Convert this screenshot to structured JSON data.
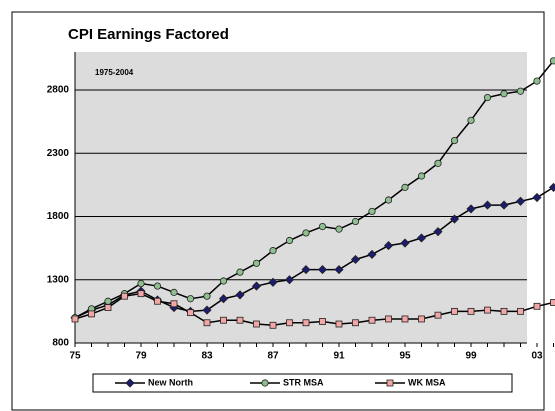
{
  "chart_data": {
    "type": "line",
    "title": "CPI Earnings Factored",
    "subtitle": "1975-2004",
    "categories": [
      "75",
      null,
      null,
      null,
      "79",
      null,
      null,
      null,
      "83",
      null,
      null,
      null,
      "87",
      null,
      null,
      null,
      "91",
      null,
      null,
      null,
      "95",
      null,
      null,
      null,
      "99",
      null,
      null,
      null,
      "03",
      null
    ],
    "series": [
      {
        "name": "New North",
        "color": "#1c1c6e",
        "marker": "diamond",
        "values": [
          1000,
          1060,
          1100,
          1180,
          1210,
          1140,
          1080,
          1050,
          1060,
          1150,
          1180,
          1250,
          1280,
          1300,
          1380,
          1380,
          1380,
          1460,
          1500,
          1570,
          1590,
          1630,
          1680,
          1780,
          1860,
          1890,
          1890,
          1920,
          1950,
          2030
        ]
      },
      {
        "name": "STR MSA",
        "color": "#8fbf8f",
        "marker": "circle",
        "values": [
          1000,
          1070,
          1130,
          1190,
          1270,
          1250,
          1200,
          1150,
          1170,
          1290,
          1360,
          1430,
          1530,
          1610,
          1670,
          1720,
          1700,
          1760,
          1840,
          1930,
          2030,
          2120,
          2220,
          2400,
          2560,
          2740,
          2770,
          2790,
          2870,
          3030
        ]
      },
      {
        "name": "WK MSA",
        "color": "#f2a6a6",
        "marker": "square",
        "values": [
          990,
          1030,
          1080,
          1170,
          1190,
          1130,
          1110,
          1040,
          960,
          980,
          980,
          950,
          940,
          960,
          960,
          970,
          950,
          960,
          980,
          990,
          990,
          990,
          1020,
          1050,
          1050,
          1060,
          1050,
          1050,
          1090,
          1120
        ]
      }
    ],
    "ylim": [
      800,
      3100
    ],
    "yticks": [
      800,
      1300,
      1800,
      2300,
      2800
    ],
    "grid": true,
    "legend": "bottom"
  }
}
